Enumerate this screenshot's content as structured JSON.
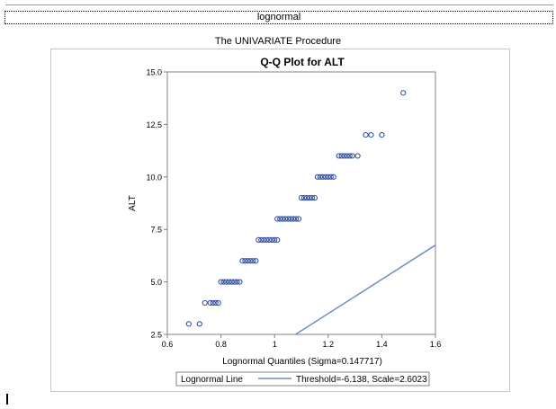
{
  "page": {
    "output_title": "lognormal",
    "procedure_title": "The UNIVARIATE Procedure"
  },
  "colors": {
    "accent": "#2a4a9a",
    "fit_line": "#6f8fbf",
    "axis": "#808080"
  },
  "chart_data": {
    "type": "scatter",
    "title": "Q-Q Plot for ALT",
    "xlabel": "Lognormal Quantiles (Sigma=0.147717)",
    "ylabel": "ALT",
    "xlim": [
      0.6,
      1.6
    ],
    "ylim": [
      2.5,
      15.0
    ],
    "x_ticks": [
      "0.6",
      "0.8",
      "1",
      "1.2",
      "1.4",
      "1.6"
    ],
    "y_ticks": [
      "2.5",
      "5.0",
      "7.5",
      "10.0",
      "12.5",
      "15.0"
    ],
    "grid": false,
    "marker": "open-circle",
    "points": [
      [
        0.68,
        3
      ],
      [
        0.72,
        3
      ],
      [
        0.74,
        4
      ],
      [
        0.76,
        4
      ],
      [
        0.77,
        4
      ],
      [
        0.78,
        4
      ],
      [
        0.79,
        4
      ],
      [
        0.8,
        5
      ],
      [
        0.81,
        5
      ],
      [
        0.82,
        5
      ],
      [
        0.83,
        5
      ],
      [
        0.84,
        5
      ],
      [
        0.85,
        5
      ],
      [
        0.86,
        5
      ],
      [
        0.87,
        5
      ],
      [
        0.88,
        6
      ],
      [
        0.89,
        6
      ],
      [
        0.9,
        6
      ],
      [
        0.91,
        6
      ],
      [
        0.92,
        6
      ],
      [
        0.93,
        6
      ],
      [
        0.94,
        7
      ],
      [
        0.95,
        7
      ],
      [
        0.96,
        7
      ],
      [
        0.97,
        7
      ],
      [
        0.98,
        7
      ],
      [
        0.99,
        7
      ],
      [
        1.0,
        7
      ],
      [
        1.01,
        7
      ],
      [
        1.01,
        8
      ],
      [
        1.02,
        8
      ],
      [
        1.03,
        8
      ],
      [
        1.04,
        8
      ],
      [
        1.05,
        8
      ],
      [
        1.06,
        8
      ],
      [
        1.07,
        8
      ],
      [
        1.08,
        8
      ],
      [
        1.09,
        8
      ],
      [
        1.1,
        9
      ],
      [
        1.11,
        9
      ],
      [
        1.12,
        9
      ],
      [
        1.13,
        9
      ],
      [
        1.14,
        9
      ],
      [
        1.15,
        9
      ],
      [
        1.16,
        10
      ],
      [
        1.17,
        10
      ],
      [
        1.18,
        10
      ],
      [
        1.19,
        10
      ],
      [
        1.2,
        10
      ],
      [
        1.21,
        10
      ],
      [
        1.22,
        10
      ],
      [
        1.24,
        11
      ],
      [
        1.25,
        11
      ],
      [
        1.26,
        11
      ],
      [
        1.27,
        11
      ],
      [
        1.28,
        11
      ],
      [
        1.29,
        11
      ],
      [
        1.31,
        11
      ],
      [
        1.34,
        12
      ],
      [
        1.36,
        12
      ],
      [
        1.4,
        12
      ],
      [
        1.48,
        14
      ]
    ],
    "reference_line": {
      "name": "Lognormal Line",
      "threshold": -6.138,
      "scale": 2.6023,
      "label": "Threshold=-6.138, Scale=2.6023"
    },
    "legend": {
      "placement": "bottom",
      "label": "Lognormal Line",
      "text": "Threshold=-6.138, Scale=2.6023"
    }
  }
}
